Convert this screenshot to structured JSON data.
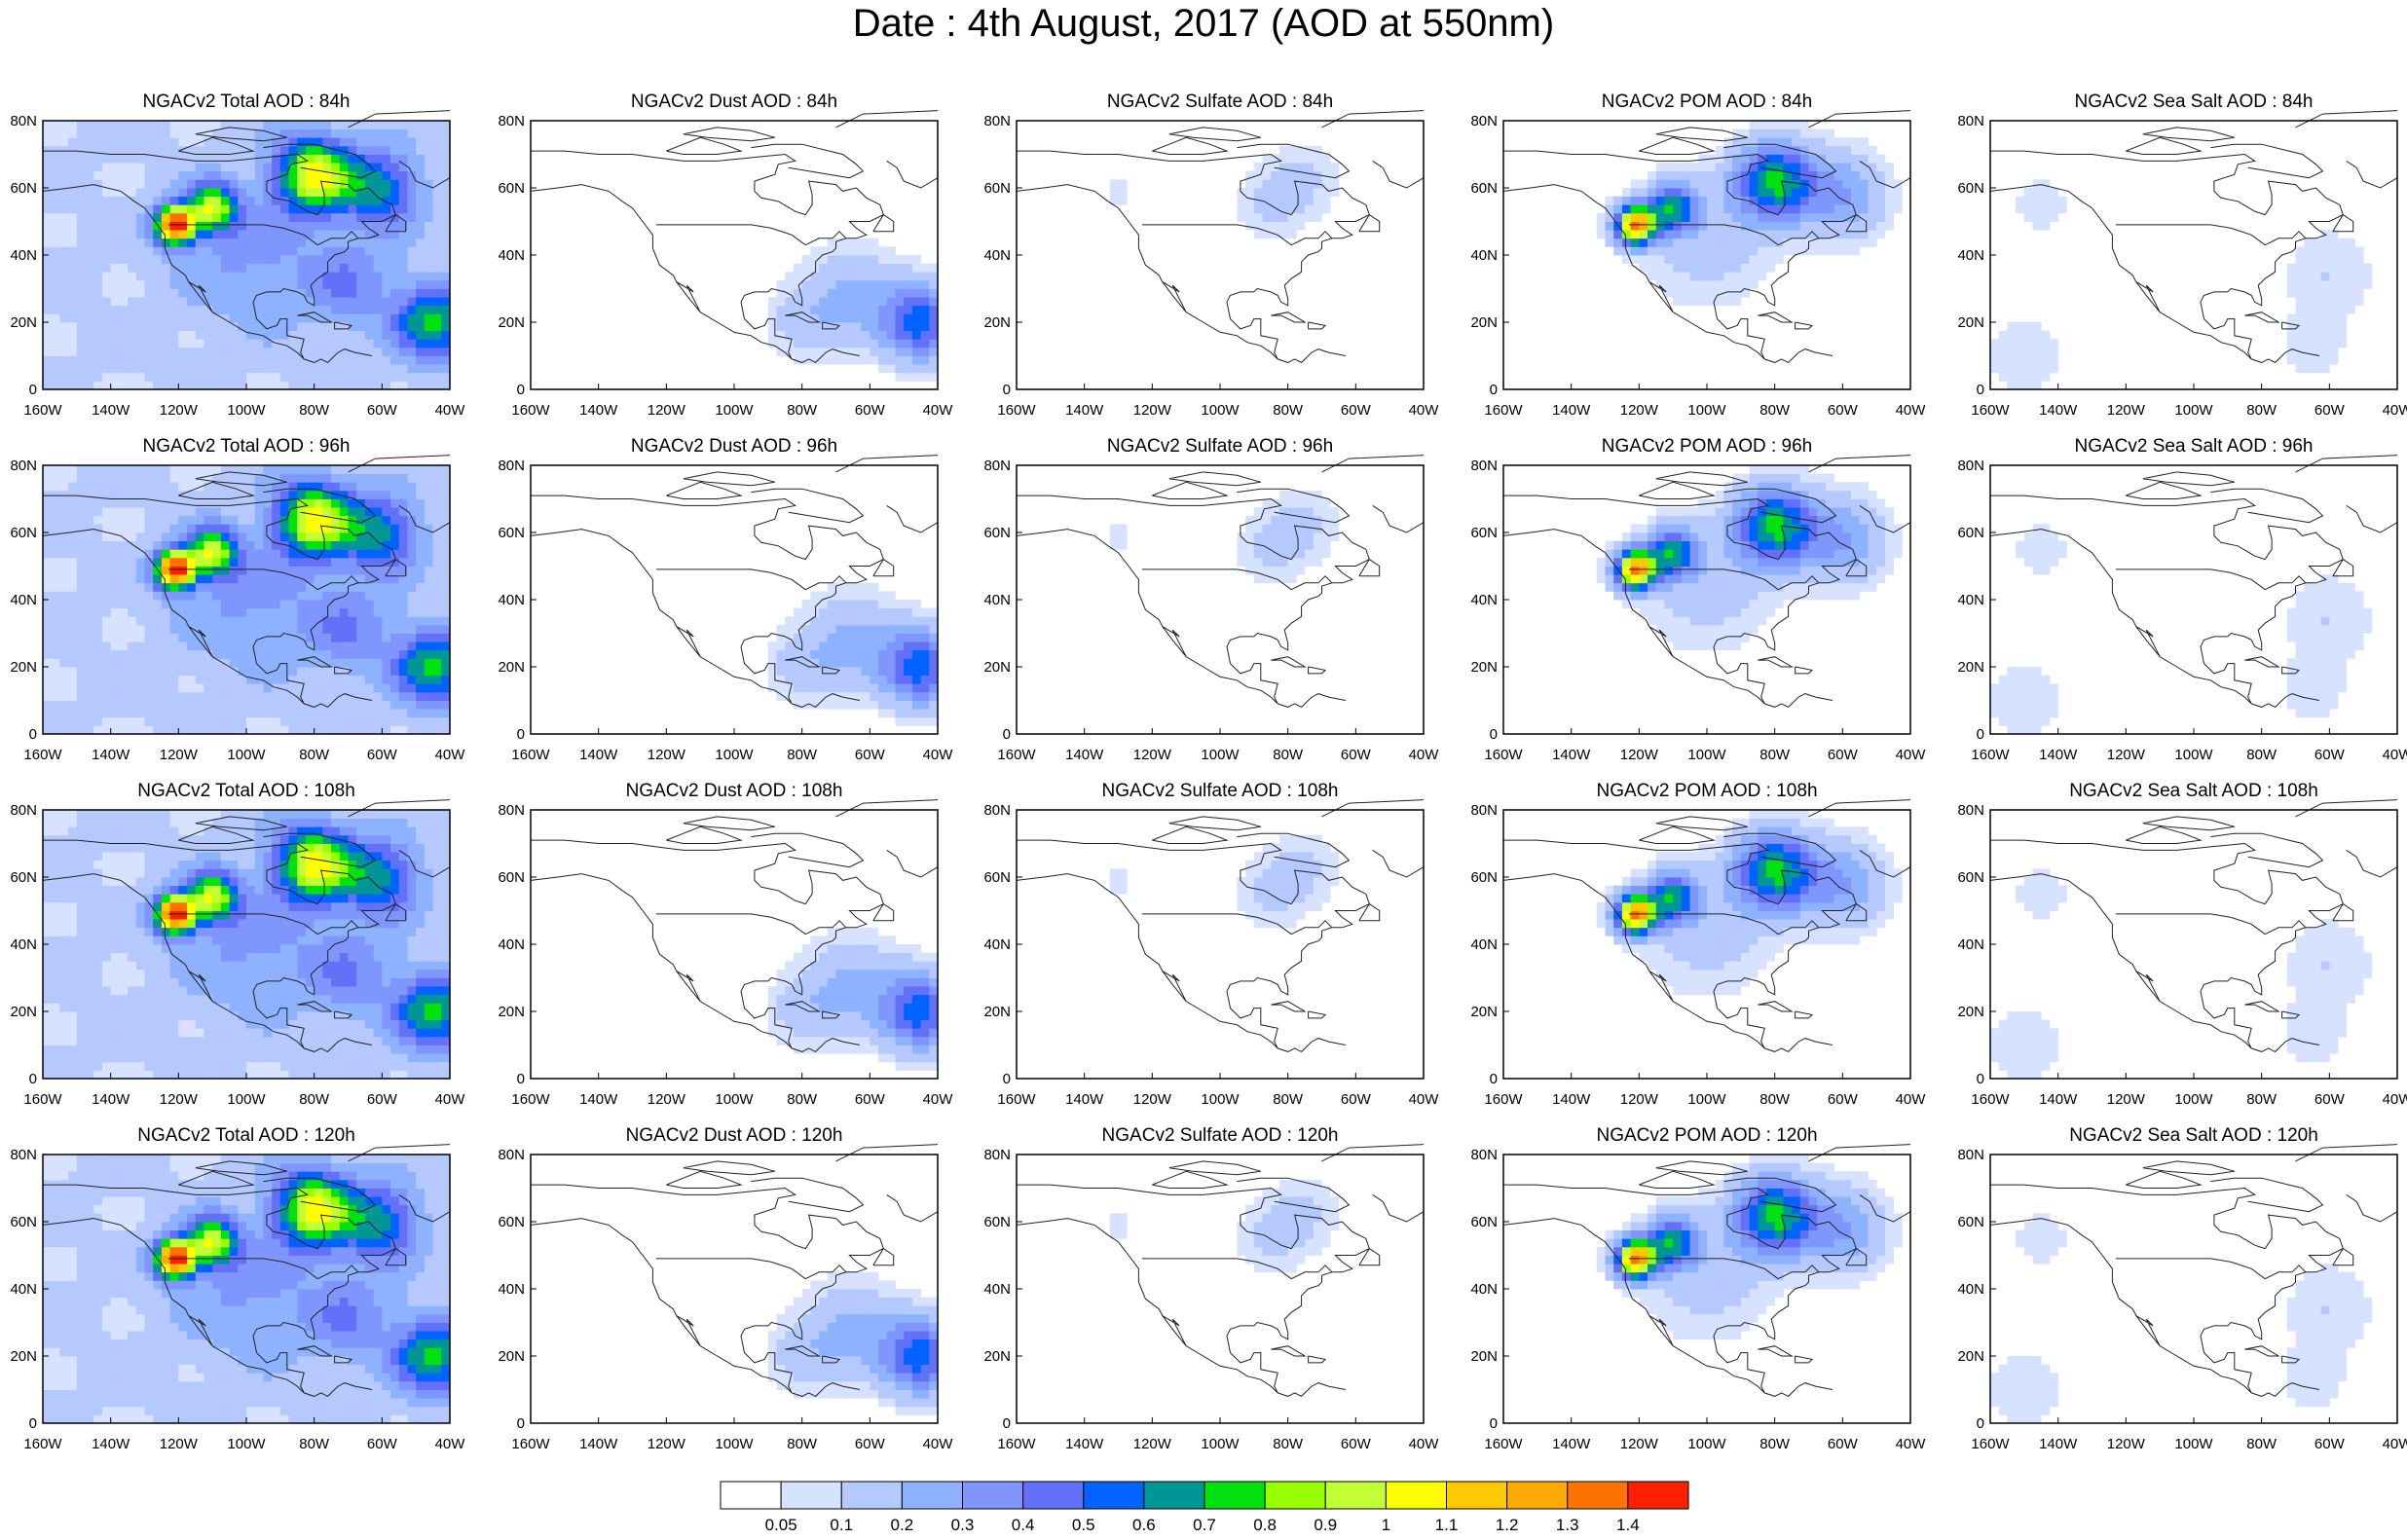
{
  "title": "Date : 4th August, 2017 (AOD at 550nm)",
  "axes": {
    "lat_ticks": [
      "0",
      "20N",
      "40N",
      "60N",
      "80N"
    ],
    "lon_ticks": [
      "160W",
      "140W",
      "120W",
      "100W",
      "80W",
      "60W",
      "40W"
    ],
    "lat_range": [
      0,
      80
    ],
    "lon_range": [
      -160,
      -40
    ]
  },
  "colors": {
    "fill_levels": [
      "#ffffff",
      "#d6e2ff",
      "#b5c9ff",
      "#8eb2ff",
      "#7f96ff",
      "#6370f8",
      "#0062ff",
      "#009695",
      "#00e210",
      "#97ff00",
      "#c2ff35",
      "#ffff00",
      "#ffc800",
      "#ffa800",
      "#ff7200",
      "#ff2000"
    ],
    "coast": "#222222"
  },
  "colorbar": {
    "labels": [
      "0.05",
      "0.1",
      "0.2",
      "0.3",
      "0.4",
      "0.5",
      "0.6",
      "0.7",
      "0.8",
      "0.9",
      "1",
      "1.1",
      "1.2",
      "1.3",
      "1.4"
    ]
  },
  "rows": [
    {
      "panels": [
        {
          "title": "NGACv2 Total AOD : 84h",
          "kind": "total"
        },
        {
          "title": "NGACv2 Dust AOD : 84h",
          "kind": "dust"
        },
        {
          "title": "NGACv2 Sulfate AOD : 84h",
          "kind": "sulfate"
        },
        {
          "title": "NGACv2 POM AOD : 84h",
          "kind": "pom"
        },
        {
          "title": "NGACv2 Sea Salt AOD : 84h",
          "kind": "seasalt"
        }
      ]
    },
    {
      "panels": [
        {
          "title": "NGACv2 Total AOD : 96h",
          "kind": "total"
        },
        {
          "title": "NGACv2 Dust AOD : 96h",
          "kind": "dust"
        },
        {
          "title": "NGACv2 Sulfate AOD : 96h",
          "kind": "sulfate"
        },
        {
          "title": "NGACv2 POM AOD : 96h",
          "kind": "pom"
        },
        {
          "title": "NGACv2 Sea Salt AOD : 96h",
          "kind": "seasalt"
        }
      ]
    },
    {
      "panels": [
        {
          "title": "NGACv2 Total AOD : 108h",
          "kind": "total"
        },
        {
          "title": "NGACv2 Dust AOD : 108h",
          "kind": "dust"
        },
        {
          "title": "NGACv2 Sulfate AOD : 108h",
          "kind": "sulfate"
        },
        {
          "title": "NGACv2 POM AOD : 108h",
          "kind": "pom"
        },
        {
          "title": "NGACv2 Sea Salt AOD : 108h",
          "kind": "seasalt"
        }
      ]
    },
    {
      "panels": [
        {
          "title": "NGACv2 Total AOD : 120h",
          "kind": "total"
        },
        {
          "title": "NGACv2 Dust AOD : 120h",
          "kind": "dust"
        },
        {
          "title": "NGACv2 Sulfate AOD : 120h",
          "kind": "sulfate"
        },
        {
          "title": "NGACv2 POM AOD : 120h",
          "kind": "pom"
        },
        {
          "title": "NGACv2 Sea Salt  AOD : 120h",
          "kind": "seasalt"
        }
      ]
    }
  ],
  "aerosol_features": {
    "total": {
      "background": 0.12,
      "blobs": [
        {
          "lon": -121,
          "lat": 49,
          "value": 1.4,
          "radius": 4
        },
        {
          "lon": -110,
          "lat": 54,
          "value": 0.8,
          "radius": 5
        },
        {
          "lon": -80,
          "lat": 64,
          "value": 0.9,
          "radius": 8
        },
        {
          "lon": -60,
          "lat": 60,
          "value": 0.5,
          "radius": 8
        },
        {
          "lon": -45,
          "lat": 20,
          "value": 0.6,
          "radius": 8
        },
        {
          "lon": -70,
          "lat": 32,
          "value": 0.25,
          "radius": 10
        },
        {
          "lon": -100,
          "lat": 40,
          "value": 0.2,
          "radius": 14
        }
      ]
    },
    "dust": {
      "background": 0.0,
      "blobs": [
        {
          "lon": -45,
          "lat": 20,
          "value": 0.55,
          "radius": 8
        },
        {
          "lon": -65,
          "lat": 28,
          "value": 0.22,
          "radius": 10
        },
        {
          "lon": -80,
          "lat": 20,
          "value": 0.12,
          "radius": 8
        }
      ]
    },
    "sulfate": {
      "background": 0.0,
      "blobs": [
        {
          "lon": -85,
          "lat": 55,
          "value": 0.1,
          "radius": 8
        },
        {
          "lon": -75,
          "lat": 63,
          "value": 0.1,
          "radius": 8
        },
        {
          "lon": -130,
          "lat": 58,
          "value": 0.06,
          "radius": 6
        }
      ]
    },
    "pom": {
      "background": 0.0,
      "blobs": [
        {
          "lon": -121,
          "lat": 49,
          "value": 1.3,
          "radius": 4
        },
        {
          "lon": -110,
          "lat": 54,
          "value": 0.6,
          "radius": 5
        },
        {
          "lon": -80,
          "lat": 62,
          "value": 0.7,
          "radius": 8
        },
        {
          "lon": -60,
          "lat": 58,
          "value": 0.3,
          "radius": 9
        },
        {
          "lon": -100,
          "lat": 45,
          "value": 0.15,
          "radius": 14
        }
      ]
    },
    "seasalt": {
      "background": 0.0,
      "blobs": [
        {
          "lon": -60,
          "lat": 35,
          "value": 0.1,
          "radius": 10
        },
        {
          "lon": -150,
          "lat": 10,
          "value": 0.08,
          "radius": 10
        },
        {
          "lon": -145,
          "lat": 55,
          "value": 0.07,
          "radius": 8
        },
        {
          "lon": -65,
          "lat": 12,
          "value": 0.08,
          "radius": 8
        }
      ]
    }
  }
}
